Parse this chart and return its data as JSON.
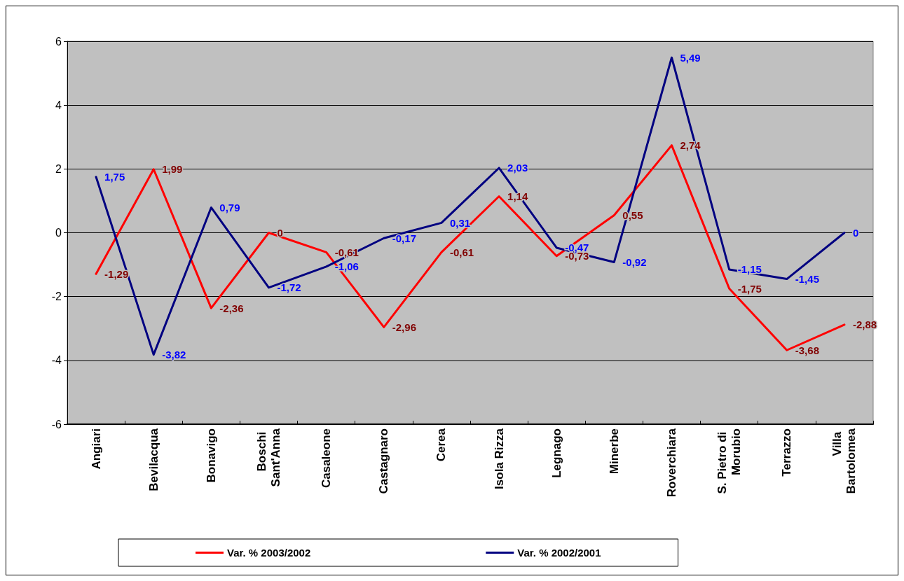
{
  "chart_data": {
    "type": "line",
    "categories": [
      "Angiari",
      "Bevilacqua",
      "Bonavigo",
      "Boschi Sant'Anna",
      "Casaleone",
      "Castagnaro",
      "Cerea",
      "Isola Rizza",
      "Legnago",
      "Minerbe",
      "Roverchiara",
      "S. Pietro di Morubio",
      "Terrazzo",
      "Villa Bartolomea"
    ],
    "series": [
      {
        "name": "Var. % 2003/2002",
        "color": "#ff0000",
        "values": [
          -1.29,
          1.99,
          -2.36,
          0,
          -0.61,
          -2.96,
          -0.61,
          1.14,
          -0.73,
          0.55,
          2.74,
          -1.75,
          -3.68,
          -2.88
        ],
        "value_labels": [
          "-1,29",
          "1,99",
          "-2,36",
          "0",
          "-0,61",
          "-2,96",
          "-0,61",
          "1,14",
          "-0,73",
          "0,55",
          "2,74",
          "-1,75",
          "-3,68",
          "-2,88"
        ]
      },
      {
        "name": "Var. % 2002/2001",
        "color": "#000080",
        "values": [
          1.75,
          -3.82,
          0.79,
          -1.72,
          -1.06,
          -0.17,
          0.31,
          2.03,
          -0.47,
          -0.92,
          5.49,
          -1.15,
          -1.45,
          0
        ],
        "value_labels": [
          "1,75",
          "-3,82",
          "0,79",
          "-1,72",
          "-1,06",
          "-0,17",
          "0,31",
          "2,03",
          "-0,47",
          "-0,92",
          "5,49",
          "-1,15",
          "-1,45",
          "0"
        ]
      }
    ],
    "ylim": [
      -6,
      6
    ],
    "yticks": [
      -6,
      -4,
      -2,
      0,
      2,
      4,
      6
    ],
    "grid": "y",
    "legend": "bottom",
    "marker": "none",
    "line_style": "solid"
  }
}
